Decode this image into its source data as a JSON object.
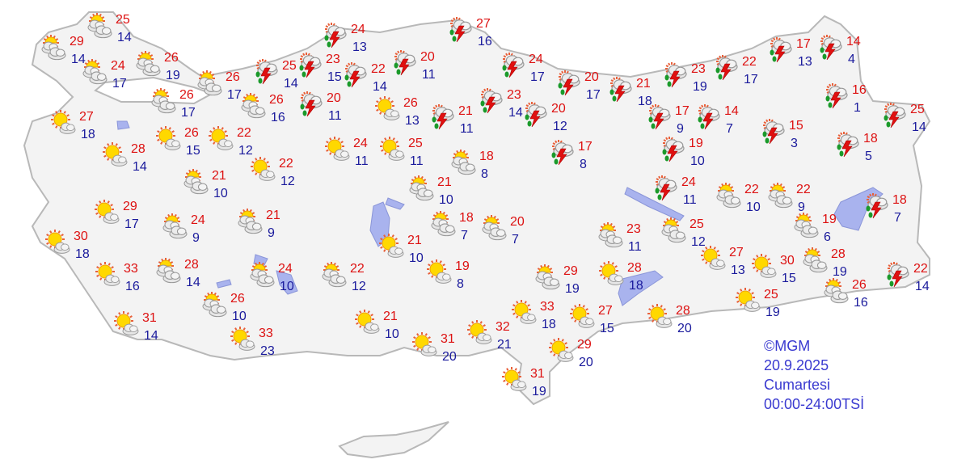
{
  "colors": {
    "max_temp": "#dd1111",
    "min_temp": "#1a1a9c",
    "land": "#f3f3f3",
    "border": "#b8b8b8",
    "lake": "#a9b3ee",
    "info_text": "#3a3ad0"
  },
  "legend": {
    "copyright": "©MGM",
    "date": "20.9.2025",
    "day": "Cumartesi",
    "period": "00:00-24:00TSİ"
  },
  "icon_types": {
    "pc": "partly-cloudy-icon",
    "sc": "mostly-sunny-icon",
    "ts": "thunderstorm-icon"
  },
  "stations": [
    {
      "icon": "pc",
      "max": "29",
      "min": "14"
    },
    {
      "icon": "pc",
      "max": "25",
      "min": "14"
    },
    {
      "icon": "pc",
      "max": "24",
      "min": "17"
    },
    {
      "icon": "pc",
      "max": "26",
      "min": "19"
    },
    {
      "icon": "pc",
      "max": "26",
      "min": "17"
    },
    {
      "icon": "pc",
      "max": "26",
      "min": "17"
    },
    {
      "icon": "sc",
      "max": "27",
      "min": "18"
    },
    {
      "icon": "sc",
      "max": "28",
      "min": "14"
    },
    {
      "icon": "sc",
      "max": "26",
      "min": "15"
    },
    {
      "icon": "sc",
      "max": "22",
      "min": "12"
    },
    {
      "icon": "pc",
      "max": "26",
      "min": "16"
    },
    {
      "icon": "ts",
      "max": "25",
      "min": "14"
    },
    {
      "icon": "ts",
      "max": "23",
      "min": "15"
    },
    {
      "icon": "ts",
      "max": "24",
      "min": "13"
    },
    {
      "icon": "ts",
      "max": "22",
      "min": "14"
    },
    {
      "icon": "ts",
      "max": "20",
      "min": "11"
    },
    {
      "icon": "ts",
      "max": "20",
      "min": "11"
    },
    {
      "icon": "sc",
      "max": "22",
      "min": "12"
    },
    {
      "icon": "pc",
      "max": "21",
      "min": "10"
    },
    {
      "icon": "sc",
      "max": "24",
      "min": "11"
    },
    {
      "icon": "sc",
      "max": "26",
      "min": "13"
    },
    {
      "icon": "sc",
      "max": "25",
      "min": "11"
    },
    {
      "icon": "ts",
      "max": "21",
      "min": "11"
    },
    {
      "icon": "pc",
      "max": "18",
      "min": "8"
    },
    {
      "icon": "ts",
      "max": "27",
      "min": "16"
    },
    {
      "icon": "ts",
      "max": "24",
      "min": "17"
    },
    {
      "icon": "ts",
      "max": "23",
      "min": "14"
    },
    {
      "icon": "ts",
      "max": "20",
      "min": "12"
    },
    {
      "icon": "ts",
      "max": "20",
      "min": "17"
    },
    {
      "icon": "ts",
      "max": "17",
      "min": "8"
    },
    {
      "icon": "ts",
      "max": "21",
      "min": "18"
    },
    {
      "icon": "ts",
      "max": "23",
      "min": "19"
    },
    {
      "icon": "ts",
      "max": "22",
      "min": "17"
    },
    {
      "icon": "ts",
      "max": "17",
      "min": "13"
    },
    {
      "icon": "ts",
      "max": "14",
      "min": "4"
    },
    {
      "icon": "ts",
      "max": "16",
      "min": "1"
    },
    {
      "icon": "ts",
      "max": "25",
      "min": "14"
    },
    {
      "icon": "ts",
      "max": "18",
      "min": "5"
    },
    {
      "icon": "ts",
      "max": "15",
      "min": "3"
    },
    {
      "icon": "ts",
      "max": "17",
      "min": "9"
    },
    {
      "icon": "ts",
      "max": "14",
      "min": "7"
    },
    {
      "icon": "ts",
      "max": "19",
      "min": "10"
    },
    {
      "icon": "ts",
      "max": "24",
      "min": "11"
    },
    {
      "icon": "pc",
      "max": "22",
      "min": "10"
    },
    {
      "icon": "pc",
      "max": "22",
      "min": "9"
    },
    {
      "icon": "ts",
      "max": "18",
      "min": "7"
    },
    {
      "icon": "pc",
      "max": "19",
      "min": "6"
    },
    {
      "icon": "pc",
      "max": "25",
      "min": "12"
    },
    {
      "icon": "pc",
      "max": "23",
      "min": "11"
    },
    {
      "icon": "pc",
      "max": "21",
      "min": "9"
    },
    {
      "icon": "pc",
      "max": "24",
      "min": "9"
    },
    {
      "icon": "sc",
      "max": "29",
      "min": "17"
    },
    {
      "icon": "sc",
      "max": "30",
      "min": "18"
    },
    {
      "icon": "sc",
      "max": "33",
      "min": "16"
    },
    {
      "icon": "pc",
      "max": "28",
      "min": "14"
    },
    {
      "icon": "pc",
      "max": "24",
      "min": "10"
    },
    {
      "icon": "pc",
      "max": "26",
      "min": "10"
    },
    {
      "icon": "sc",
      "max": "31",
      "min": "14"
    },
    {
      "icon": "sc",
      "max": "33",
      "min": "23"
    },
    {
      "icon": "pc",
      "max": "22",
      "min": "12"
    },
    {
      "icon": "sc",
      "max": "21",
      "min": "10"
    },
    {
      "icon": "pc",
      "max": "21",
      "min": "10"
    },
    {
      "icon": "pc",
      "max": "18",
      "min": "7"
    },
    {
      "icon": "pc",
      "max": "20",
      "min": "7"
    },
    {
      "icon": "sc",
      "max": "19",
      "min": "8"
    },
    {
      "icon": "sc",
      "max": "21",
      "min": "10"
    },
    {
      "icon": "sc",
      "max": "31",
      "min": "20"
    },
    {
      "icon": "sc",
      "max": "32",
      "min": "21"
    },
    {
      "icon": "sc",
      "max": "33",
      "min": "18"
    },
    {
      "icon": "pc",
      "max": "29",
      "min": "19"
    },
    {
      "icon": "sc",
      "max": "28",
      "min": "18"
    },
    {
      "icon": "sc",
      "max": "27",
      "min": "15"
    },
    {
      "icon": "sc",
      "max": "28",
      "min": "20"
    },
    {
      "icon": "sc",
      "max": "29",
      "min": "20"
    },
    {
      "icon": "sc",
      "max": "31",
      "min": "19"
    },
    {
      "icon": "sc",
      "max": "27",
      "min": "13"
    },
    {
      "icon": "sc",
      "max": "30",
      "min": "15"
    },
    {
      "icon": "pc",
      "max": "28",
      "min": "19"
    },
    {
      "icon": "sc",
      "max": "25",
      "min": "19"
    },
    {
      "icon": "pc",
      "max": "26",
      "min": "16"
    },
    {
      "icon": "ts",
      "max": "22",
      "min": "14"
    }
  ]
}
